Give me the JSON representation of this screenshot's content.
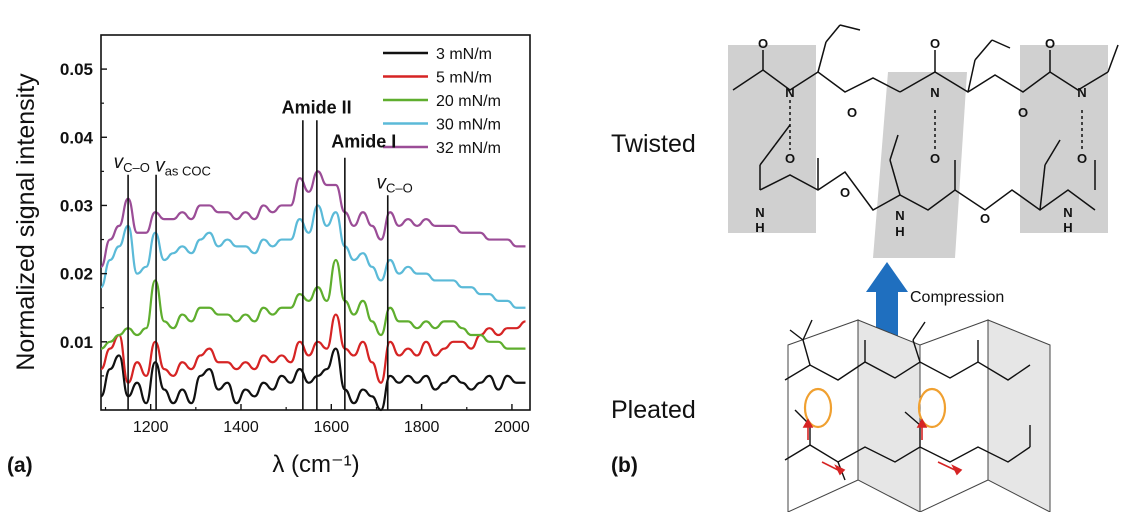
{
  "colors": {
    "3 mN/m": "#111111",
    "5 mN/m": "#d62424",
    "20 mN/m": "#5fae2e",
    "30 mN/m": "#5bbad8",
    "32 mN/m": "#9b4d97",
    "arrow": "#1f6fbf",
    "panel": "#d0d0d0",
    "highlight": "#f0a030",
    "red_arrow": "#d62424"
  },
  "panel_a_label": "(a)",
  "panel_b_label": "(b)",
  "chart_data": {
    "type": "line",
    "xlabel": "λ (cm⁻¹)",
    "ylabel": "Normalized signal intensity",
    "xlim": [
      1090,
      2040
    ],
    "ylim": [
      0,
      0.055
    ],
    "xticks": [
      1200,
      1400,
      1600,
      1800,
      2000
    ],
    "yticks": [
      0.01,
      0.02,
      0.03,
      0.04,
      0.05
    ],
    "ytick_labels": [
      "0.01",
      "0.02",
      "0.03",
      "0.04",
      "0.05"
    ],
    "legend_position": "top-right",
    "series": [
      {
        "name": "3 mN/m",
        "x": [
          1090,
          1110,
          1130,
          1150,
          1170,
          1190,
          1210,
          1230,
          1250,
          1270,
          1290,
          1310,
          1330,
          1350,
          1370,
          1390,
          1410,
          1430,
          1450,
          1470,
          1490,
          1510,
          1530,
          1550,
          1570,
          1590,
          1610,
          1630,
          1650,
          1670,
          1690,
          1710,
          1730,
          1750,
          1770,
          1790,
          1810,
          1830,
          1850,
          1870,
          1890,
          1910,
          1930,
          1950,
          1970,
          1990,
          2010,
          2030
        ],
        "y": [
          0.002,
          0.006,
          0.008,
          0.002,
          0.004,
          0.001,
          0.007,
          0.003,
          0.001,
          0.003,
          0.001,
          0.005,
          0.006,
          0.003,
          0.004,
          0.001,
          0.003,
          0.002,
          0.004,
          0.003,
          0.005,
          0.004,
          0.006,
          0.004,
          0.005,
          0.006,
          0.009,
          0.003,
          0.001,
          0.003,
          0.002,
          0.0,
          0.005,
          0.004,
          0.005,
          0.004,
          0.005,
          0.003,
          0.004,
          0.005,
          0.004,
          0.003,
          0.004,
          0.005,
          0.003,
          0.005,
          0.004,
          0.004
        ]
      },
      {
        "name": "5 mN/m",
        "x": [
          1090,
          1110,
          1130,
          1150,
          1170,
          1190,
          1210,
          1230,
          1250,
          1270,
          1290,
          1310,
          1330,
          1350,
          1370,
          1390,
          1410,
          1430,
          1450,
          1470,
          1490,
          1510,
          1530,
          1550,
          1570,
          1590,
          1610,
          1630,
          1650,
          1670,
          1690,
          1710,
          1730,
          1750,
          1770,
          1790,
          1810,
          1830,
          1850,
          1870,
          1890,
          1910,
          1930,
          1950,
          1970,
          1990,
          2010,
          2030
        ],
        "y": [
          0.006,
          0.009,
          0.011,
          0.004,
          0.007,
          0.005,
          0.01,
          0.006,
          0.005,
          0.007,
          0.006,
          0.008,
          0.009,
          0.007,
          0.007,
          0.006,
          0.007,
          0.006,
          0.008,
          0.007,
          0.008,
          0.007,
          0.01,
          0.008,
          0.01,
          0.009,
          0.014,
          0.009,
          0.008,
          0.01,
          0.007,
          0.004,
          0.01,
          0.008,
          0.009,
          0.008,
          0.01,
          0.008,
          0.009,
          0.01,
          0.01,
          0.009,
          0.011,
          0.012,
          0.011,
          0.012,
          0.012,
          0.013
        ]
      },
      {
        "name": "20 mN/m",
        "x": [
          1090,
          1110,
          1130,
          1150,
          1170,
          1190,
          1210,
          1230,
          1250,
          1270,
          1290,
          1310,
          1330,
          1350,
          1370,
          1390,
          1410,
          1430,
          1450,
          1470,
          1490,
          1510,
          1530,
          1550,
          1570,
          1590,
          1610,
          1630,
          1650,
          1670,
          1690,
          1710,
          1730,
          1750,
          1770,
          1790,
          1810,
          1830,
          1850,
          1870,
          1890,
          1910,
          1930,
          1950,
          1970,
          1990,
          2010,
          2030
        ],
        "y": [
          0.009,
          0.01,
          0.011,
          0.012,
          0.011,
          0.012,
          0.019,
          0.013,
          0.012,
          0.014,
          0.013,
          0.015,
          0.015,
          0.014,
          0.014,
          0.013,
          0.014,
          0.013,
          0.015,
          0.014,
          0.015,
          0.015,
          0.017,
          0.016,
          0.018,
          0.016,
          0.022,
          0.016,
          0.014,
          0.016,
          0.013,
          0.011,
          0.015,
          0.013,
          0.013,
          0.012,
          0.013,
          0.012,
          0.013,
          0.013,
          0.012,
          0.011,
          0.011,
          0.01,
          0.01,
          0.009,
          0.009,
          0.009
        ]
      },
      {
        "name": "30 mN/m",
        "x": [
          1090,
          1110,
          1130,
          1150,
          1170,
          1190,
          1210,
          1230,
          1250,
          1270,
          1290,
          1310,
          1330,
          1350,
          1370,
          1390,
          1410,
          1430,
          1450,
          1470,
          1490,
          1510,
          1530,
          1550,
          1570,
          1590,
          1610,
          1630,
          1650,
          1670,
          1690,
          1710,
          1730,
          1750,
          1770,
          1790,
          1810,
          1830,
          1850,
          1870,
          1890,
          1910,
          1930,
          1950,
          1970,
          1990,
          2010,
          2030
        ],
        "y": [
          0.018,
          0.022,
          0.024,
          0.027,
          0.02,
          0.021,
          0.026,
          0.022,
          0.023,
          0.024,
          0.023,
          0.025,
          0.026,
          0.024,
          0.025,
          0.024,
          0.024,
          0.023,
          0.025,
          0.024,
          0.025,
          0.025,
          0.028,
          0.026,
          0.03,
          0.027,
          0.029,
          0.024,
          0.022,
          0.023,
          0.021,
          0.019,
          0.022,
          0.02,
          0.021,
          0.02,
          0.02,
          0.019,
          0.019,
          0.019,
          0.018,
          0.018,
          0.017,
          0.017,
          0.016,
          0.016,
          0.015,
          0.015
        ]
      },
      {
        "name": "32 mN/m",
        "x": [
          1090,
          1110,
          1130,
          1150,
          1170,
          1190,
          1210,
          1230,
          1250,
          1270,
          1290,
          1310,
          1330,
          1350,
          1370,
          1390,
          1410,
          1430,
          1450,
          1470,
          1490,
          1510,
          1530,
          1550,
          1570,
          1590,
          1610,
          1630,
          1650,
          1670,
          1690,
          1710,
          1730,
          1750,
          1770,
          1790,
          1810,
          1830,
          1850,
          1870,
          1890,
          1910,
          1930,
          1950,
          1970,
          1990,
          2010,
          2030
        ],
        "y": [
          0.021,
          0.025,
          0.027,
          0.031,
          0.026,
          0.026,
          0.029,
          0.028,
          0.028,
          0.029,
          0.028,
          0.03,
          0.03,
          0.029,
          0.029,
          0.028,
          0.029,
          0.028,
          0.03,
          0.029,
          0.03,
          0.03,
          0.034,
          0.032,
          0.035,
          0.033,
          0.033,
          0.029,
          0.027,
          0.029,
          0.027,
          0.025,
          0.029,
          0.027,
          0.028,
          0.027,
          0.028,
          0.027,
          0.027,
          0.027,
          0.026,
          0.026,
          0.026,
          0.025,
          0.025,
          0.025,
          0.024,
          0.024
        ]
      }
    ],
    "annotations": [
      {
        "text": "v",
        "sub": "C–O",
        "x": 1150,
        "style": "italic"
      },
      {
        "text": "v",
        "sub": "as COC",
        "x": 1212,
        "style": "italic"
      },
      {
        "text": "Amide II",
        "x": 1537,
        "x2": 1568,
        "style": "bold"
      },
      {
        "text": "Amide I",
        "x": 1630,
        "style": "bold"
      },
      {
        "text": "v",
        "sub": "C–O",
        "x": 1725,
        "style": "italic"
      }
    ]
  },
  "scheme": {
    "twisted_label": "Twisted",
    "pleated_label": "Pleated",
    "compression_label": "Compression",
    "atoms": {
      "O": "O",
      "N": "N",
      "H": "H"
    }
  }
}
